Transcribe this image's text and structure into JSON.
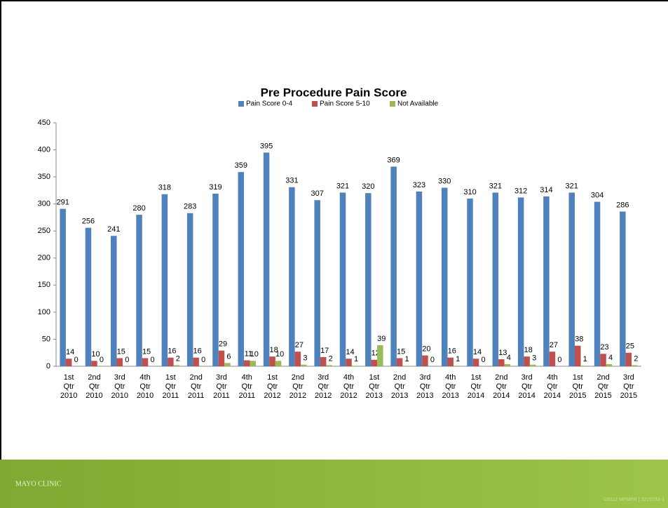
{
  "chart_data": {
    "type": "bar",
    "title": "Pre Procedure Pain Score",
    "categories": [
      "1st Qtr 2010",
      "2nd Qtr 2010",
      "3rd Qtr 2010",
      "4th Qtr 2010",
      "1st Qtr 2011",
      "2nd Qtr 2011",
      "3rd Qtr 2011",
      "4th Qtr 2011",
      "1st Qtr 2012",
      "2nd Qtr 2012",
      "3rd Qtr 2012",
      "4th Qtr 2012",
      "1st Qtr 2013",
      "2nd Qtr 2013",
      "3rd Qtr 2013",
      "4th Qtr 2013",
      "1st Qtr 2014",
      "2nd Qtr 2014",
      "3rd Qtr 2014",
      "4th Qtr 2014",
      "1st Qtr 2015",
      "2nd Qtr 2015",
      "3rd Qtr 2015"
    ],
    "series": [
      {
        "name": "Pain Score 0-4",
        "color": "#4f81bd",
        "values": [
          291,
          256,
          241,
          280,
          318,
          283,
          319,
          359,
          395,
          331,
          307,
          321,
          320,
          369,
          323,
          330,
          310,
          321,
          312,
          314,
          321,
          304,
          286
        ]
      },
      {
        "name": "Pain Score 5-10",
        "color": "#c0504d",
        "values": [
          14,
          10,
          15,
          15,
          16,
          16,
          29,
          11,
          18,
          27,
          17,
          14,
          12,
          15,
          20,
          16,
          14,
          13,
          18,
          27,
          38,
          23,
          25
        ]
      },
      {
        "name": "Not Available",
        "color": "#9bbb59",
        "values": [
          0,
          0,
          0,
          0,
          2,
          0,
          6,
          10,
          10,
          3,
          2,
          1,
          39,
          1,
          0,
          1,
          0,
          4,
          3,
          0,
          1,
          4,
          2
        ]
      }
    ],
    "ylim": [
      0,
      450
    ],
    "yticks": [
      0,
      50,
      100,
      150,
      200,
      250,
      300,
      350,
      400,
      450
    ],
    "legend": "top"
  },
  "footer": {
    "logo": "MAYO CLINIC",
    "copyright": "©2012 MFMER | 3226733-1"
  }
}
